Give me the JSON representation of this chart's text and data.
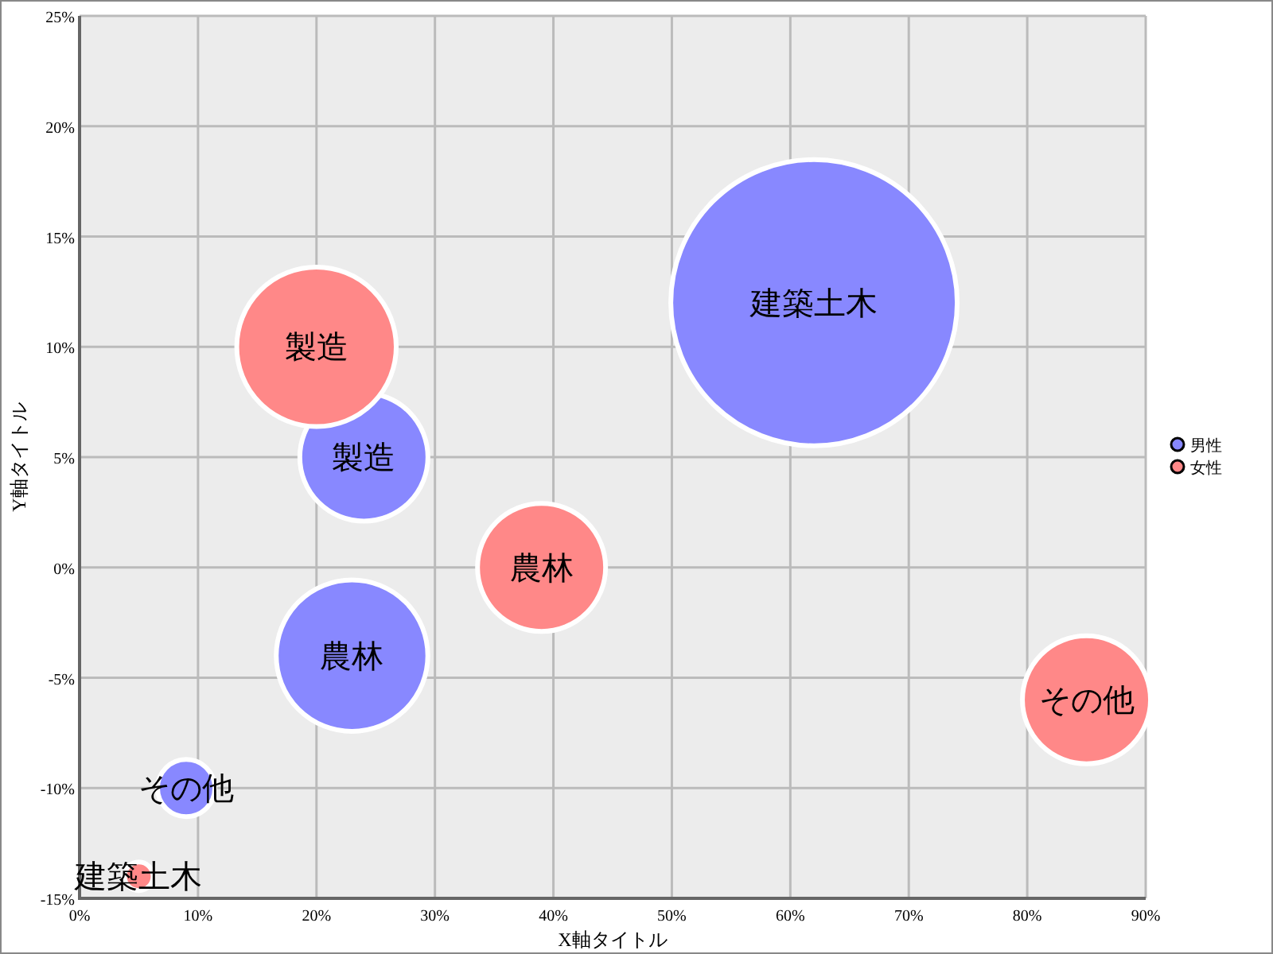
{
  "chart_data": {
    "type": "bubble",
    "xlabel": "X軸タイトル",
    "ylabel": "Y軸タイトル",
    "xlim": [
      0,
      90
    ],
    "ylim": [
      -15,
      25
    ],
    "xticks": [
      {
        "value": 0,
        "label": "0%"
      },
      {
        "value": 10,
        "label": "10%"
      },
      {
        "value": 20,
        "label": "20%"
      },
      {
        "value": 30,
        "label": "30%"
      },
      {
        "value": 40,
        "label": "40%"
      },
      {
        "value": 50,
        "label": "50%"
      },
      {
        "value": 60,
        "label": "60%"
      },
      {
        "value": 70,
        "label": "70%"
      },
      {
        "value": 80,
        "label": "80%"
      },
      {
        "value": 90,
        "label": "90%"
      }
    ],
    "yticks": [
      {
        "value": -15,
        "label": "-15%"
      },
      {
        "value": -10,
        "label": "-10%"
      },
      {
        "value": -5,
        "label": "-5%"
      },
      {
        "value": 0,
        "label": "0%"
      },
      {
        "value": 5,
        "label": "5%"
      },
      {
        "value": 10,
        "label": "10%"
      },
      {
        "value": 15,
        "label": "15%"
      },
      {
        "value": 20,
        "label": "20%"
      },
      {
        "value": 25,
        "label": "25%"
      }
    ],
    "grid": true,
    "legend": "right",
    "series": [
      {
        "name": "男性",
        "color": "#8888ff",
        "x": [
          62,
          24,
          23,
          9
        ],
        "values": [
          12,
          5,
          -4,
          -10
        ],
        "sizes": [
          1,
          0.2,
          0.28,
          0.04
        ]
      },
      {
        "name": "女性",
        "color": "#ff8888",
        "x": [
          20,
          39,
          85,
          5
        ],
        "values": [
          10,
          0,
          -6,
          -14
        ],
        "sizes": [
          0.31,
          0.2,
          0.2,
          0.01
        ]
      }
    ],
    "annotations": [
      {
        "text": "建築土木",
        "x": 62,
        "y": 12
      },
      {
        "text": "製造",
        "x": 24,
        "y": 5
      },
      {
        "text": "農林",
        "x": 23,
        "y": -4
      },
      {
        "text": "その他",
        "x": 9,
        "y": -10
      },
      {
        "text": "製造",
        "x": 20,
        "y": 10
      },
      {
        "text": "農林",
        "x": 39,
        "y": 0
      },
      {
        "text": "その他",
        "x": 85,
        "y": -6
      },
      {
        "text": "建築土木",
        "x": 5,
        "y": -14
      }
    ]
  }
}
